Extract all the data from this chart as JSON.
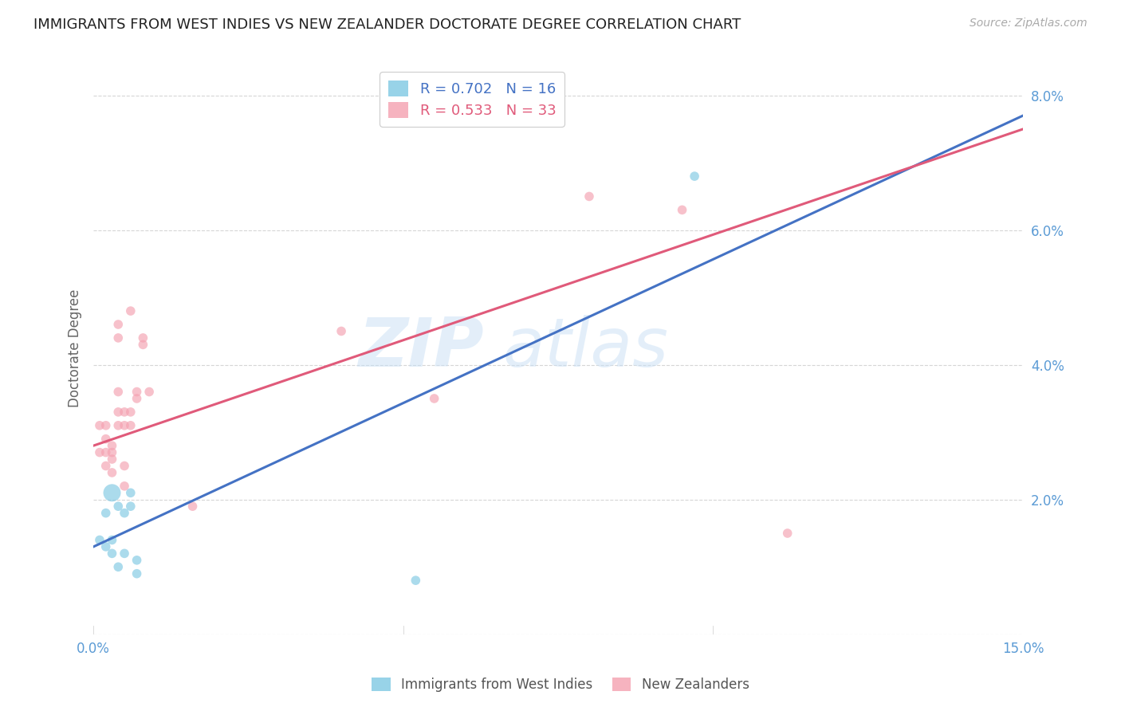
{
  "title": "IMMIGRANTS FROM WEST INDIES VS NEW ZEALANDER DOCTORATE DEGREE CORRELATION CHART",
  "source": "Source: ZipAtlas.com",
  "ylabel": "Doctorate Degree",
  "xlim": [
    0.0,
    0.15
  ],
  "ylim": [
    0.0,
    0.085
  ],
  "xticks": [
    0.0,
    0.05,
    0.1,
    0.15
  ],
  "xtick_labels": [
    "0.0%",
    "",
    "",
    "15.0%"
  ],
  "yticks": [
    0.0,
    0.02,
    0.04,
    0.06,
    0.08
  ],
  "ytick_labels": [
    "",
    "2.0%",
    "4.0%",
    "6.0%",
    "8.0%"
  ],
  "background_color": "#ffffff",
  "grid_color": "#cccccc",
  "axis_color": "#5b9bd5",
  "watermark_text": "ZIP",
  "watermark_text2": "atlas",
  "legend1_label": "R = 0.702   N = 16",
  "legend2_label": "R = 0.533   N = 33",
  "series1_color": "#7ec8e3",
  "series2_color": "#f4a0b0",
  "line1_color": "#4472c4",
  "line2_color": "#e05a7a",
  "series1_name": "Immigrants from West Indies",
  "series2_name": "New Zealanders",
  "blue_points_x": [
    0.001,
    0.002,
    0.002,
    0.003,
    0.003,
    0.003,
    0.004,
    0.004,
    0.005,
    0.005,
    0.006,
    0.006,
    0.007,
    0.007,
    0.052,
    0.097
  ],
  "blue_points_y": [
    0.014,
    0.013,
    0.018,
    0.012,
    0.014,
    0.021,
    0.01,
    0.019,
    0.012,
    0.018,
    0.019,
    0.021,
    0.011,
    0.009,
    0.008,
    0.068
  ],
  "blue_sizes": [
    70,
    70,
    70,
    70,
    70,
    250,
    70,
    70,
    70,
    70,
    70,
    70,
    70,
    70,
    70,
    70
  ],
  "pink_points_x": [
    0.001,
    0.001,
    0.002,
    0.002,
    0.002,
    0.002,
    0.003,
    0.003,
    0.003,
    0.003,
    0.004,
    0.004,
    0.004,
    0.004,
    0.004,
    0.005,
    0.005,
    0.005,
    0.005,
    0.006,
    0.006,
    0.006,
    0.007,
    0.007,
    0.008,
    0.008,
    0.009,
    0.016,
    0.04,
    0.055,
    0.08,
    0.095,
    0.112
  ],
  "pink_points_y": [
    0.027,
    0.031,
    0.025,
    0.027,
    0.029,
    0.031,
    0.024,
    0.026,
    0.027,
    0.028,
    0.031,
    0.033,
    0.036,
    0.044,
    0.046,
    0.022,
    0.025,
    0.031,
    0.033,
    0.031,
    0.033,
    0.048,
    0.035,
    0.036,
    0.043,
    0.044,
    0.036,
    0.019,
    0.045,
    0.035,
    0.065,
    0.063,
    0.015
  ],
  "pink_sizes": [
    70,
    70,
    70,
    70,
    70,
    70,
    70,
    70,
    70,
    70,
    70,
    70,
    70,
    70,
    70,
    70,
    70,
    70,
    70,
    70,
    70,
    70,
    70,
    70,
    70,
    70,
    70,
    70,
    70,
    70,
    70,
    70,
    70
  ],
  "blue_line_x": [
    0.0,
    0.15
  ],
  "blue_line_y": [
    0.013,
    0.077
  ],
  "pink_line_x": [
    0.0,
    0.15
  ],
  "pink_line_y": [
    0.028,
    0.075
  ]
}
